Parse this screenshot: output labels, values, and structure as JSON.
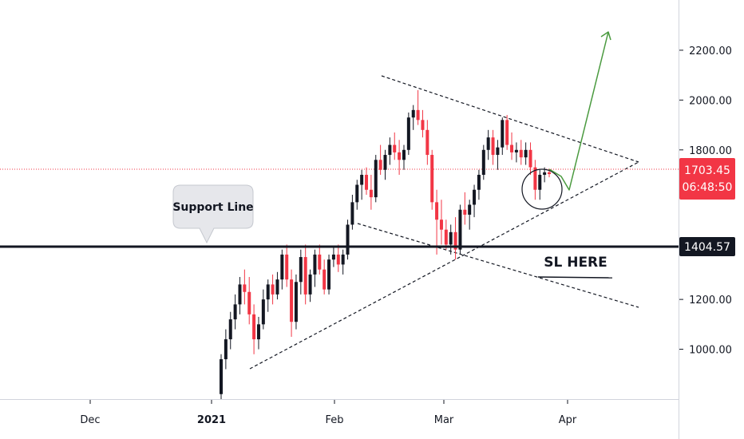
{
  "chart_data": {
    "type": "candlestick",
    "y_ticks": [
      "2200.00",
      "2000.00",
      "1800.00",
      "1200.00",
      "1000.00"
    ],
    "x_ticks": [
      {
        "label": "Dec",
        "bold": false
      },
      {
        "label": "2021",
        "bold": true
      },
      {
        "label": "Feb",
        "bold": false
      },
      {
        "label": "Mar",
        "bold": false
      },
      {
        "label": "Apr",
        "bold": false
      }
    ],
    "ylim": [
      800,
      2370
    ],
    "current_price": {
      "value": 1703.45,
      "label": "1703.45",
      "countdown": "06:48:50",
      "color": "#f23645"
    },
    "support": {
      "value": 1404.57,
      "label": "1404.57",
      "color": "#131722"
    },
    "annotations": {
      "callout": "Support Line",
      "sl": "SL HERE"
    },
    "colors": {
      "up": "#131722",
      "down": "#f23645",
      "projection": "#4a9a3f",
      "trendline": "#131722"
    },
    "candles": [
      {
        "o": 820,
        "h": 980,
        "l": 800,
        "c": 960
      },
      {
        "o": 960,
        "h": 1080,
        "l": 920,
        "c": 1040
      },
      {
        "o": 1040,
        "h": 1150,
        "l": 1000,
        "c": 1120
      },
      {
        "o": 1120,
        "h": 1220,
        "l": 1080,
        "c": 1180
      },
      {
        "o": 1180,
        "h": 1290,
        "l": 1140,
        "c": 1260
      },
      {
        "o": 1260,
        "h": 1320,
        "l": 1180,
        "c": 1230
      },
      {
        "o": 1230,
        "h": 1290,
        "l": 1100,
        "c": 1140
      },
      {
        "o": 1140,
        "h": 1180,
        "l": 980,
        "c": 1040
      },
      {
        "o": 1040,
        "h": 1130,
        "l": 1000,
        "c": 1100
      },
      {
        "o": 1100,
        "h": 1240,
        "l": 1080,
        "c": 1200
      },
      {
        "o": 1200,
        "h": 1280,
        "l": 1150,
        "c": 1260
      },
      {
        "o": 1260,
        "h": 1300,
        "l": 1180,
        "c": 1220
      },
      {
        "o": 1220,
        "h": 1310,
        "l": 1200,
        "c": 1280
      },
      {
        "o": 1280,
        "h": 1400,
        "l": 1240,
        "c": 1380
      },
      {
        "o": 1380,
        "h": 1420,
        "l": 1250,
        "c": 1280
      },
      {
        "o": 1280,
        "h": 1320,
        "l": 1050,
        "c": 1110
      },
      {
        "o": 1110,
        "h": 1300,
        "l": 1080,
        "c": 1270
      },
      {
        "o": 1270,
        "h": 1400,
        "l": 1220,
        "c": 1370
      },
      {
        "o": 1370,
        "h": 1420,
        "l": 1180,
        "c": 1220
      },
      {
        "o": 1220,
        "h": 1320,
        "l": 1190,
        "c": 1300
      },
      {
        "o": 1300,
        "h": 1400,
        "l": 1250,
        "c": 1380
      },
      {
        "o": 1380,
        "h": 1420,
        "l": 1300,
        "c": 1320
      },
      {
        "o": 1320,
        "h": 1360,
        "l": 1220,
        "c": 1240
      },
      {
        "o": 1240,
        "h": 1380,
        "l": 1220,
        "c": 1360
      },
      {
        "o": 1360,
        "h": 1410,
        "l": 1330,
        "c": 1380
      },
      {
        "o": 1380,
        "h": 1420,
        "l": 1310,
        "c": 1340
      },
      {
        "o": 1340,
        "h": 1400,
        "l": 1300,
        "c": 1380
      },
      {
        "o": 1380,
        "h": 1520,
        "l": 1360,
        "c": 1500
      },
      {
        "o": 1500,
        "h": 1620,
        "l": 1480,
        "c": 1590
      },
      {
        "o": 1590,
        "h": 1680,
        "l": 1560,
        "c": 1660
      },
      {
        "o": 1660,
        "h": 1720,
        "l": 1600,
        "c": 1700
      },
      {
        "o": 1700,
        "h": 1730,
        "l": 1620,
        "c": 1640
      },
      {
        "o": 1640,
        "h": 1700,
        "l": 1560,
        "c": 1610
      },
      {
        "o": 1610,
        "h": 1780,
        "l": 1590,
        "c": 1760
      },
      {
        "o": 1760,
        "h": 1820,
        "l": 1700,
        "c": 1720
      },
      {
        "o": 1720,
        "h": 1800,
        "l": 1680,
        "c": 1780
      },
      {
        "o": 1780,
        "h": 1850,
        "l": 1740,
        "c": 1820
      },
      {
        "o": 1820,
        "h": 1870,
        "l": 1760,
        "c": 1790
      },
      {
        "o": 1790,
        "h": 1840,
        "l": 1700,
        "c": 1760
      },
      {
        "o": 1760,
        "h": 1820,
        "l": 1720,
        "c": 1800
      },
      {
        "o": 1800,
        "h": 1950,
        "l": 1780,
        "c": 1930
      },
      {
        "o": 1930,
        "h": 1980,
        "l": 1880,
        "c": 1960
      },
      {
        "o": 1960,
        "h": 2040,
        "l": 1900,
        "c": 1920
      },
      {
        "o": 1920,
        "h": 1960,
        "l": 1850,
        "c": 1880
      },
      {
        "o": 1880,
        "h": 1920,
        "l": 1740,
        "c": 1780
      },
      {
        "o": 1780,
        "h": 1800,
        "l": 1560,
        "c": 1590
      },
      {
        "o": 1590,
        "h": 1640,
        "l": 1380,
        "c": 1520
      },
      {
        "o": 1520,
        "h": 1600,
        "l": 1420,
        "c": 1480
      },
      {
        "o": 1480,
        "h": 1520,
        "l": 1400,
        "c": 1420
      },
      {
        "o": 1420,
        "h": 1500,
        "l": 1380,
        "c": 1470
      },
      {
        "o": 1470,
        "h": 1530,
        "l": 1360,
        "c": 1400
      },
      {
        "o": 1400,
        "h": 1580,
        "l": 1380,
        "c": 1560
      },
      {
        "o": 1560,
        "h": 1630,
        "l": 1500,
        "c": 1540
      },
      {
        "o": 1540,
        "h": 1600,
        "l": 1480,
        "c": 1580
      },
      {
        "o": 1580,
        "h": 1660,
        "l": 1530,
        "c": 1640
      },
      {
        "o": 1640,
        "h": 1720,
        "l": 1600,
        "c": 1700
      },
      {
        "o": 1700,
        "h": 1820,
        "l": 1680,
        "c": 1800
      },
      {
        "o": 1800,
        "h": 1880,
        "l": 1760,
        "c": 1850
      },
      {
        "o": 1850,
        "h": 1880,
        "l": 1740,
        "c": 1780
      },
      {
        "o": 1780,
        "h": 1840,
        "l": 1720,
        "c": 1810
      },
      {
        "o": 1810,
        "h": 1930,
        "l": 1780,
        "c": 1920
      },
      {
        "o": 1920,
        "h": 1940,
        "l": 1800,
        "c": 1820
      },
      {
        "o": 1820,
        "h": 1870,
        "l": 1760,
        "c": 1790
      },
      {
        "o": 1790,
        "h": 1830,
        "l": 1750,
        "c": 1800
      },
      {
        "o": 1800,
        "h": 1840,
        "l": 1740,
        "c": 1770
      },
      {
        "o": 1770,
        "h": 1830,
        "l": 1740,
        "c": 1800
      },
      {
        "o": 1800,
        "h": 1830,
        "l": 1700,
        "c": 1730
      },
      {
        "o": 1730,
        "h": 1760,
        "l": 1600,
        "c": 1640
      },
      {
        "o": 1640,
        "h": 1720,
        "l": 1600,
        "c": 1700
      },
      {
        "o": 1700,
        "h": 1730,
        "l": 1670,
        "c": 1710
      },
      {
        "o": 1710,
        "h": 1720,
        "l": 1690,
        "c": 1703
      }
    ]
  }
}
